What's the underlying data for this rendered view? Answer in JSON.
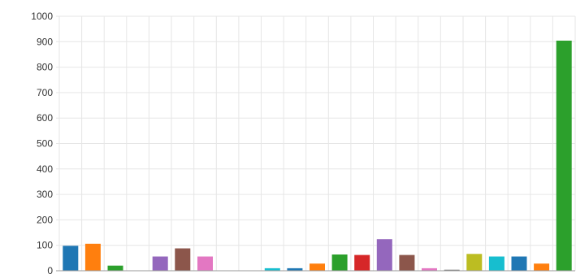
{
  "chart_data": {
    "type": "bar",
    "ylim": [
      0,
      1000
    ],
    "yticks": [
      0,
      100,
      200,
      300,
      400,
      500,
      600,
      700,
      800,
      900,
      1000
    ],
    "grid": true,
    "values": [
      98,
      106,
      20,
      0,
      56,
      88,
      56,
      0,
      0,
      10,
      10,
      28,
      64,
      62,
      124,
      62,
      10,
      4,
      66,
      56,
      56,
      28,
      904
    ],
    "colors": [
      "#1f77b4",
      "#ff7f0e",
      "#2ca02c",
      "#d62728",
      "#9467bd",
      "#8c564b",
      "#e377c2",
      "#7f7f7f",
      "#bcbd22",
      "#17becf",
      "#1f77b4",
      "#ff7f0e",
      "#2ca02c",
      "#d62728",
      "#9467bd",
      "#8c564b",
      "#e377c2",
      "#7f7f7f",
      "#bcbd22",
      "#17becf",
      "#1f77b4",
      "#ff7f0e",
      "#2ca02c"
    ]
  }
}
